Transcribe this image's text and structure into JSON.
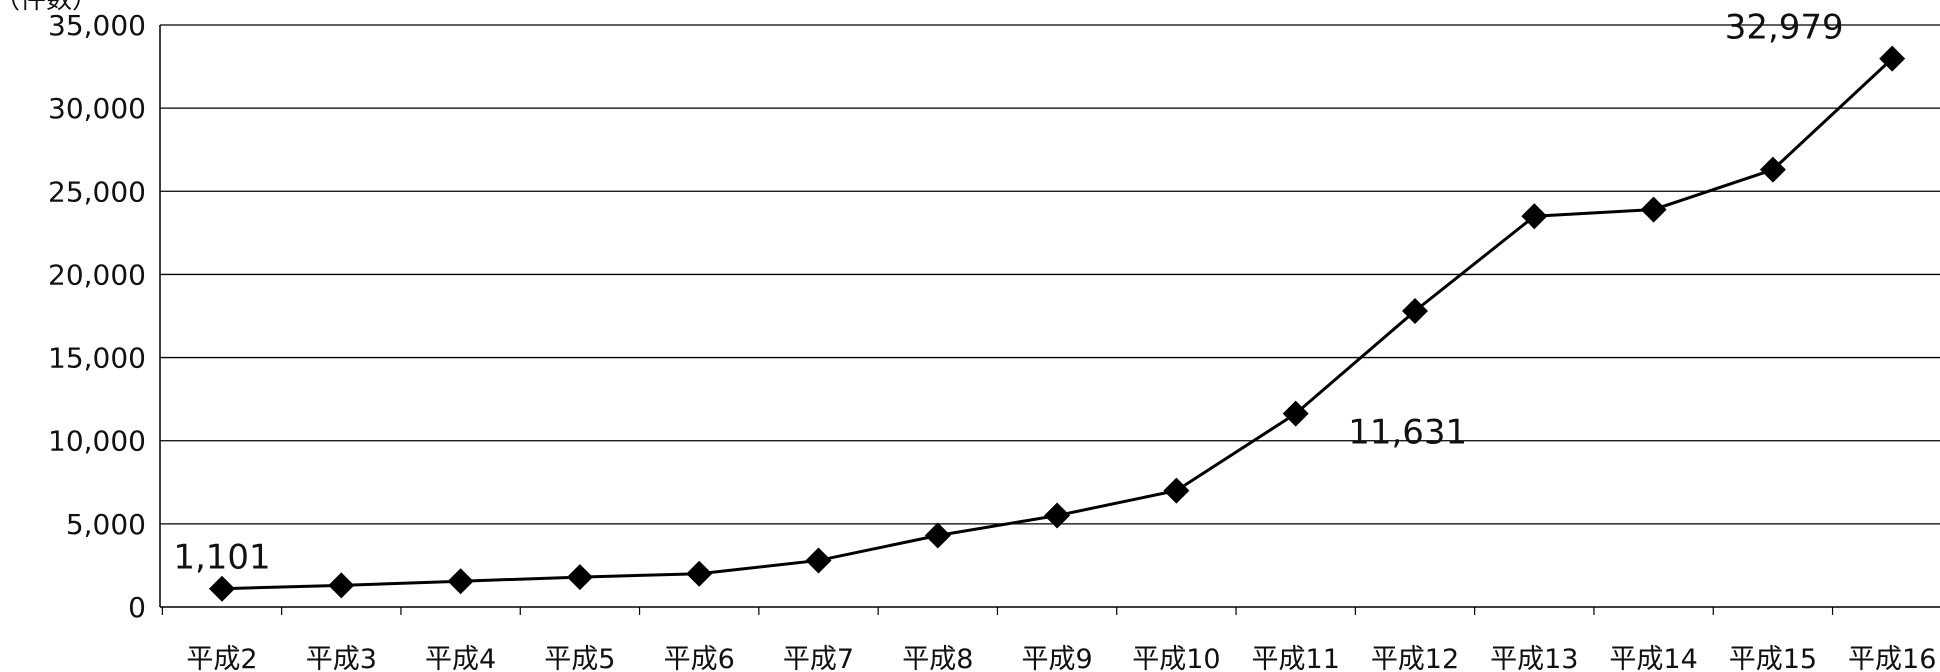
{
  "chart_data": {
    "type": "line",
    "y_unit_label": "（件数）",
    "categories": [
      "平成2",
      "平成3",
      "平成4",
      "平成5",
      "平成6",
      "平成7",
      "平成8",
      "平成9",
      "平成10",
      "平成11",
      "平成12",
      "平成13",
      "平成14",
      "平成15",
      "平成16"
    ],
    "series": [
      {
        "values": [
          1101,
          1300,
          1550,
          1800,
          2000,
          2800,
          4300,
          5500,
          7000,
          11631,
          17800,
          23500,
          23900,
          26300,
          32979
        ]
      }
    ],
    "ylim": [
      0,
      35000
    ],
    "yticks": [
      0,
      5000,
      10000,
      15000,
      20000,
      25000,
      30000,
      35000
    ],
    "ytick_labels": [
      "0",
      "5,000",
      "10,000",
      "15,000",
      "20,000",
      "25,000",
      "30,000",
      "35,000"
    ],
    "data_labels": [
      {
        "index": 0,
        "text": "1,101"
      },
      {
        "index": 9,
        "text": "11,631"
      },
      {
        "index": 14,
        "text": "32,979"
      }
    ],
    "grid": true,
    "marker": "diamond",
    "colors": {
      "line": "#000000",
      "marker": "#000000",
      "grid": "#000000",
      "text": "#111111"
    }
  }
}
